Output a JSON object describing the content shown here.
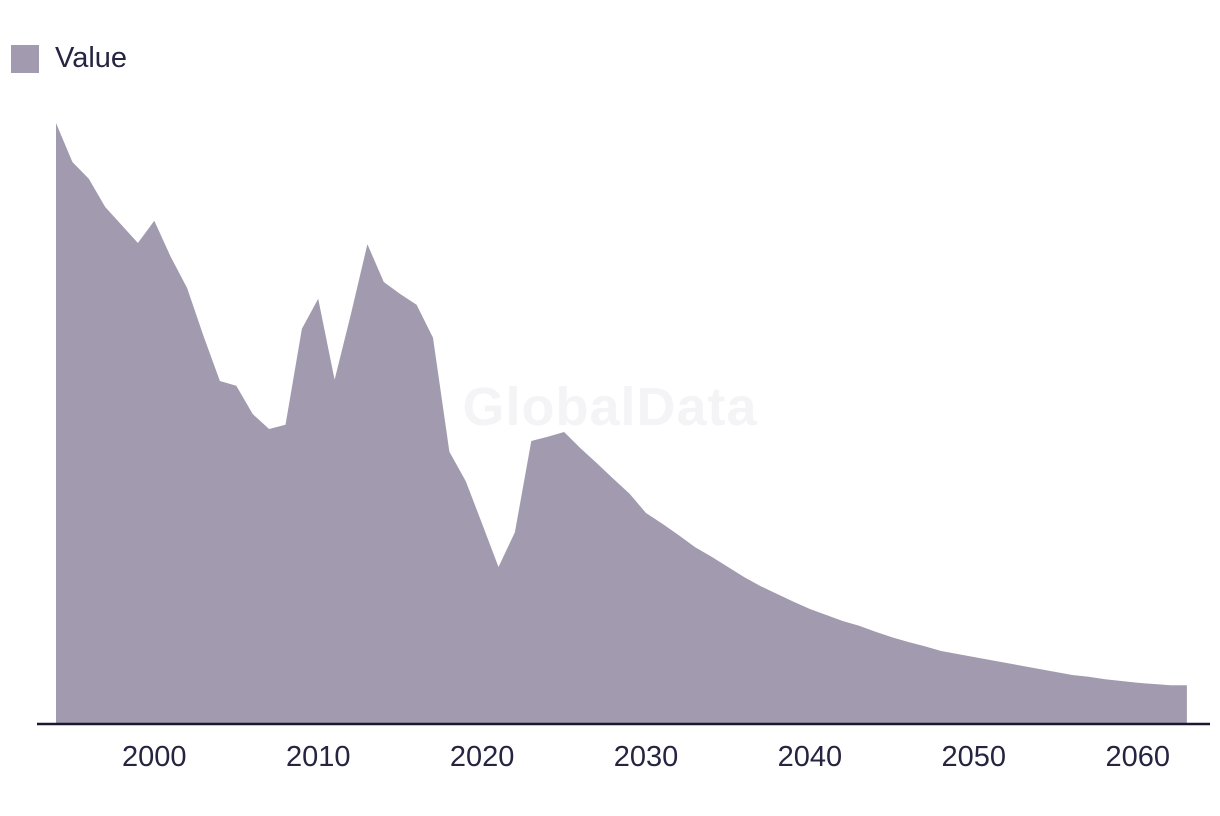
{
  "legend": {
    "label": "Value",
    "swatch_color": "#a29aae"
  },
  "watermark": {
    "text": "GlobalData",
    "color": "#f4f4f6"
  },
  "chart_data": {
    "type": "area",
    "title": "",
    "xlabel": "",
    "ylabel": "",
    "grid": false,
    "legend_position": "top-left",
    "y_axis_visible": false,
    "y_units": "relative index (no y-axis shown; peak = 100)",
    "ylim": [
      0,
      105
    ],
    "x_range": [
      1994,
      2063
    ],
    "x_ticks": [
      2000,
      2010,
      2020,
      2030,
      2040,
      2050,
      2060
    ],
    "axis_line_color": "#1a1830",
    "tick_label_color": "#262440",
    "series": [
      {
        "name": "Value",
        "color": "#a29aae",
        "x": [
          1994,
          1995,
          1996,
          1997,
          1998,
          1999,
          2000,
          2001,
          2002,
          2003,
          2004,
          2005,
          2006,
          2007,
          2008,
          2009,
          2010,
          2011,
          2012,
          2013,
          2014,
          2015,
          2016,
          2017,
          2018,
          2019,
          2020,
          2021,
          2022,
          2023,
          2024,
          2025,
          2026,
          2027,
          2028,
          2029,
          2030,
          2031,
          2032,
          2033,
          2034,
          2035,
          2036,
          2037,
          2038,
          2039,
          2040,
          2041,
          2042,
          2043,
          2044,
          2045,
          2046,
          2047,
          2048,
          2049,
          2050,
          2051,
          2052,
          2053,
          2054,
          2055,
          2056,
          2057,
          2058,
          2059,
          2060,
          2061,
          2062,
          2063
        ],
        "values": [
          100,
          93.5,
          90.7,
          86.0,
          83.0,
          80.0,
          83.7,
          77.7,
          72.5,
          64.5,
          57.0,
          56.2,
          51.5,
          49.0,
          49.7,
          65.7,
          70.7,
          57.2,
          68.2,
          79.8,
          73.5,
          71.5,
          69.7,
          64.2,
          45.2,
          40.3,
          33.2,
          26.0,
          31.8,
          47.0,
          47.7,
          48.5,
          45.8,
          43.3,
          40.7,
          38.2,
          35.0,
          33.2,
          31.3,
          29.3,
          27.7,
          26.0,
          24.3,
          22.8,
          21.5,
          20.2,
          19.0,
          18.0,
          17.0,
          16.2,
          15.2,
          14.3,
          13.5,
          12.8,
          12.0,
          11.5,
          11.0,
          10.5,
          10.0,
          9.5,
          9.0,
          8.5,
          8.0,
          7.7,
          7.3,
          7.0,
          6.7,
          6.5,
          6.3,
          6.3
        ]
      }
    ]
  }
}
